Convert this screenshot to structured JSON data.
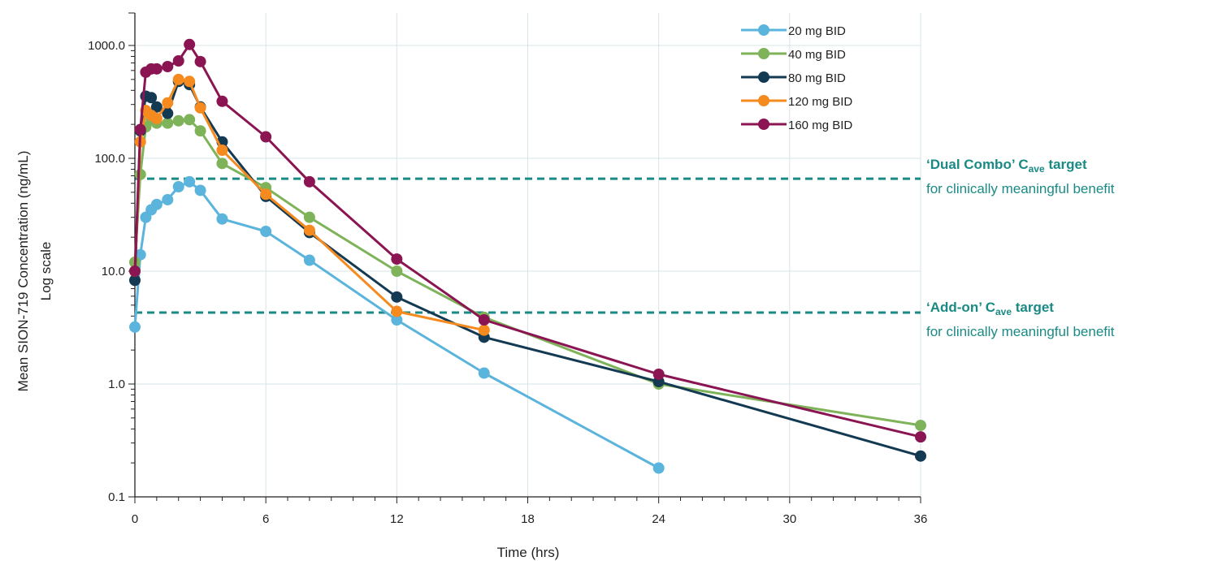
{
  "chart_data": {
    "type": "line",
    "title": "",
    "xlabel": "Time (hrs)",
    "ylabel": "Mean SION-719 Concentration (ng/mL)",
    "ylabel_sub": "Log scale",
    "y_scale": "log",
    "xlim": [
      0,
      36
    ],
    "ylim": [
      0.1,
      1000
    ],
    "x_ticks": [
      0,
      6,
      12,
      18,
      24,
      30,
      36
    ],
    "x_tick_labels": [
      "0",
      "6",
      "12",
      "18",
      "24",
      "30",
      "36"
    ],
    "y_ticks": [
      0.1,
      1,
      10,
      100,
      1000
    ],
    "y_tick_labels": [
      "0.1",
      "1.0",
      "10.0",
      "100.0",
      "1000.0"
    ],
    "grid": true,
    "legend_position": "top-right",
    "series": [
      {
        "name": "20 mg BID",
        "color": "#5ab4dc",
        "points": [
          [
            0,
            3.2
          ],
          [
            0.25,
            14
          ],
          [
            0.5,
            30
          ],
          [
            0.75,
            35
          ],
          [
            1,
            39
          ],
          [
            1.5,
            43
          ],
          [
            2,
            56
          ],
          [
            2.5,
            62
          ],
          [
            3,
            52
          ],
          [
            4,
            29
          ],
          [
            6,
            22.5
          ],
          [
            8,
            12.5
          ],
          [
            12,
            3.7
          ],
          [
            16,
            1.25
          ],
          [
            24,
            0.18
          ]
        ]
      },
      {
        "name": "40 mg BID",
        "color": "#7fb35a",
        "points": [
          [
            0,
            12
          ],
          [
            0.25,
            72
          ],
          [
            0.5,
            190
          ],
          [
            0.75,
            220
          ],
          [
            1,
            205
          ],
          [
            1.5,
            205
          ],
          [
            2,
            215
          ],
          [
            2.5,
            220
          ],
          [
            3,
            175
          ],
          [
            4,
            90
          ],
          [
            6,
            55
          ],
          [
            8,
            30
          ],
          [
            12,
            10
          ],
          [
            16,
            3.9
          ],
          [
            24,
            1.0
          ],
          [
            36,
            0.43
          ]
        ]
      },
      {
        "name": "80 mg BID",
        "color": "#133a52",
        "points": [
          [
            0,
            8.3
          ],
          [
            0.25,
            175
          ],
          [
            0.5,
            355
          ],
          [
            0.75,
            345
          ],
          [
            1,
            285
          ],
          [
            1.5,
            250
          ],
          [
            2,
            480
          ],
          [
            2.5,
            450
          ],
          [
            3,
            285
          ],
          [
            4,
            140
          ],
          [
            6,
            46
          ],
          [
            8,
            22
          ],
          [
            12,
            5.9
          ],
          [
            16,
            2.6
          ],
          [
            24,
            1.05
          ],
          [
            36,
            0.23
          ]
        ]
      },
      {
        "name": "120 mg BID",
        "color": "#f58a1f",
        "points": [
          [
            0,
            10
          ],
          [
            0.25,
            140
          ],
          [
            0.5,
            265
          ],
          [
            0.75,
            240
          ],
          [
            1,
            225
          ],
          [
            1.5,
            310
          ],
          [
            2,
            500
          ],
          [
            2.5,
            480
          ],
          [
            3,
            280
          ],
          [
            4,
            118
          ],
          [
            6,
            48
          ],
          [
            8,
            23
          ],
          [
            12,
            4.4
          ],
          [
            16,
            3.0
          ]
        ]
      },
      {
        "name": "160 mg BID",
        "color": "#8a1552",
        "points": [
          [
            0,
            10
          ],
          [
            0.25,
            180
          ],
          [
            0.5,
            580
          ],
          [
            0.75,
            620
          ],
          [
            1,
            620
          ],
          [
            1.5,
            650
          ],
          [
            2,
            730
          ],
          [
            2.5,
            1020
          ],
          [
            3,
            720
          ],
          [
            4,
            320
          ],
          [
            6,
            155
          ],
          [
            8,
            62
          ],
          [
            12,
            12.8
          ],
          [
            16,
            3.7
          ],
          [
            24,
            1.22
          ],
          [
            36,
            0.34
          ]
        ]
      }
    ],
    "reference_lines": [
      {
        "y": 66,
        "color": "#1a8a85",
        "label_title_pre": "‘Dual Combo’ C",
        "label_title_sub": "ave",
        "label_title_post": " target",
        "label_sub": "for clinically meaningful benefit"
      },
      {
        "y": 4.3,
        "color": "#1a8a85",
        "label_title_pre": "‘Add-on’ C",
        "label_title_sub": "ave",
        "label_title_post": " target",
        "label_sub": "for clinically meaningful benefit"
      }
    ]
  }
}
